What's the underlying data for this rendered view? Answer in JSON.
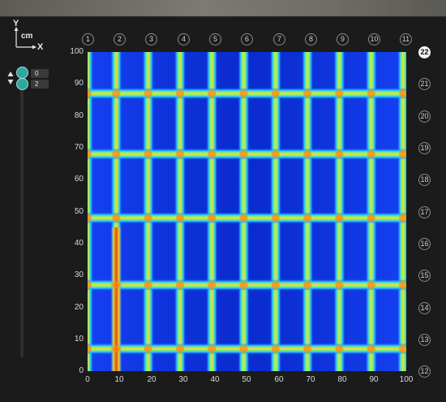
{
  "axis_indicator": {
    "y_label": "Y",
    "x_label": "X",
    "unit": "cm"
  },
  "slider": {
    "values": [
      "0",
      "2"
    ]
  },
  "columns": [
    "1",
    "2",
    "3",
    "4",
    "5",
    "6",
    "7",
    "8",
    "9",
    "10",
    "11"
  ],
  "rows": [
    "22",
    "21",
    "20",
    "19",
    "18",
    "17",
    "16",
    "15",
    "14",
    "13",
    "12"
  ],
  "active_row": "22",
  "y_ticks": [
    "100",
    "90",
    "80",
    "70",
    "60",
    "50",
    "40",
    "30",
    "20",
    "10",
    "0"
  ],
  "x_ticks": [
    "0",
    "10",
    "20",
    "30",
    "40",
    "50",
    "60",
    "70",
    "80",
    "90",
    "100"
  ],
  "heatmap": {
    "type": "heatmap",
    "xlim": [
      0,
      100
    ],
    "ylim": [
      0,
      100
    ],
    "colormap": "jet",
    "vertical_lines_x": [
      0,
      9,
      19,
      29,
      39,
      49,
      59,
      69,
      79,
      89,
      99
    ],
    "horizontal_lines_y": [
      87,
      68,
      48,
      27,
      7
    ],
    "background_color": "#0a33e0"
  }
}
